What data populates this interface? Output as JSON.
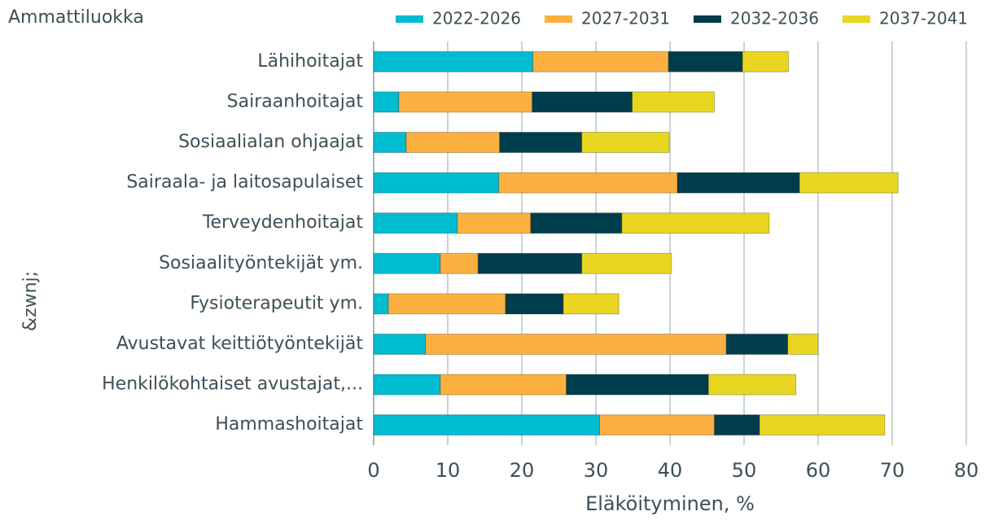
{
  "chart_data": {
    "type": "stacked_barh",
    "title": "Ammattiluokka",
    "x_label": "Eläköityminen, %",
    "y_label": "&zwnj;",
    "categories": [
      "Lähihoitajat",
      "Sairaanhoitajat",
      "Sosiaalialan ohjaajat",
      "Sairaala- ja laitosapulaiset",
      "Terveydenhoitajat",
      "Sosiaalityöntekijät ym.",
      "Fysioterapeutit ym.",
      "Avustavat keittiötyöntekijät",
      "Henkilökohtaiset avustajat,...",
      "Hammashoitajat"
    ],
    "series": [
      {
        "name": "2022-2026",
        "color": "#00bcd0",
        "values": [
          21.5,
          3.4,
          4.4,
          16.9,
          11.3,
          9.0,
          2.0,
          7.0,
          9.0,
          30.5
        ]
      },
      {
        "name": "2027-2031",
        "color": "#fbb040",
        "values": [
          18.3,
          18.0,
          12.6,
          24.1,
          9.9,
          5.1,
          15.8,
          40.6,
          17.0,
          15.5
        ]
      },
      {
        "name": "2032-2036",
        "color": "#003d4c",
        "values": [
          10.0,
          13.5,
          11.1,
          16.5,
          12.3,
          14.0,
          7.8,
          8.3,
          19.2,
          6.1
        ]
      },
      {
        "name": "2037-2041",
        "color": "#e8d621",
        "values": [
          6.2,
          11.1,
          11.8,
          13.3,
          19.9,
          12.1,
          7.5,
          4.1,
          11.8,
          16.9
        ]
      }
    ],
    "xlim": [
      0,
      80
    ],
    "xticks": [
      0,
      10,
      20,
      30,
      40,
      50,
      60,
      70,
      80
    ],
    "grid": true,
    "legend": "top-right"
  }
}
